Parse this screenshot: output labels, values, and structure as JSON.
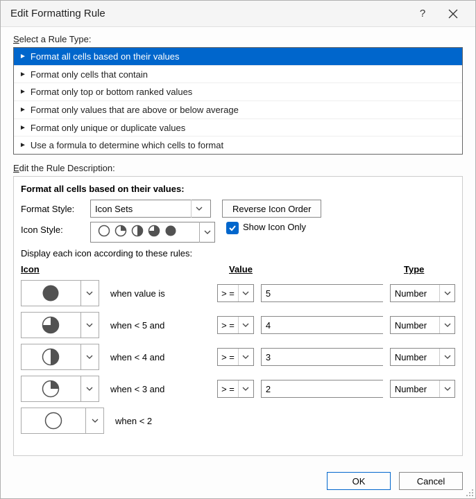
{
  "dialog": {
    "title": "Edit Formatting Rule",
    "help_label": "?",
    "close_label": "×"
  },
  "rule_type": {
    "label_prefix": "S",
    "label_rest": "elect a Rule Type:",
    "items": [
      "Format all cells based on their values",
      "Format only cells that contain",
      "Format only top or bottom ranked values",
      "Format only values that are above or below average",
      "Format only unique or duplicate values",
      "Use a formula to determine which cells to format"
    ],
    "selected_index": 0
  },
  "description": {
    "label_prefix": "E",
    "label_rest": "dit the Rule Description:",
    "heading": "Format all cells based on their values:",
    "format_style_label": "Format Style:",
    "format_style_value": "Icon Sets",
    "reverse_button": "Reverse Icon Order",
    "icon_style_label": "Icon Style:",
    "show_icon_only_label": "Show Icon Only",
    "show_icon_only_checked": true,
    "rules_hint": "Display each icon according to these rules:",
    "headers": {
      "icon": "Icon",
      "value": "Value",
      "type": "Type"
    },
    "iconset_preview_fills": [
      0,
      25,
      50,
      75,
      100
    ],
    "icon_color": "#525252",
    "rows": [
      {
        "icon_fill": 100,
        "when": "when value is",
        "op": "> =",
        "value": "5",
        "type": "Number"
      },
      {
        "icon_fill": 75,
        "when": "when < 5 and",
        "op": "> =",
        "value": "4",
        "type": "Number"
      },
      {
        "icon_fill": 50,
        "when": "when < 4 and",
        "op": "> =",
        "value": "3",
        "type": "Number"
      },
      {
        "icon_fill": 25,
        "when": "when < 3 and",
        "op": "> =",
        "value": "2",
        "type": "Number"
      },
      {
        "icon_fill": 0,
        "when": "when < 2",
        "op": null,
        "value": null,
        "type": null
      }
    ]
  },
  "footer": {
    "ok": "OK",
    "cancel": "Cancel"
  },
  "colors": {
    "accent": "#0066cc"
  }
}
